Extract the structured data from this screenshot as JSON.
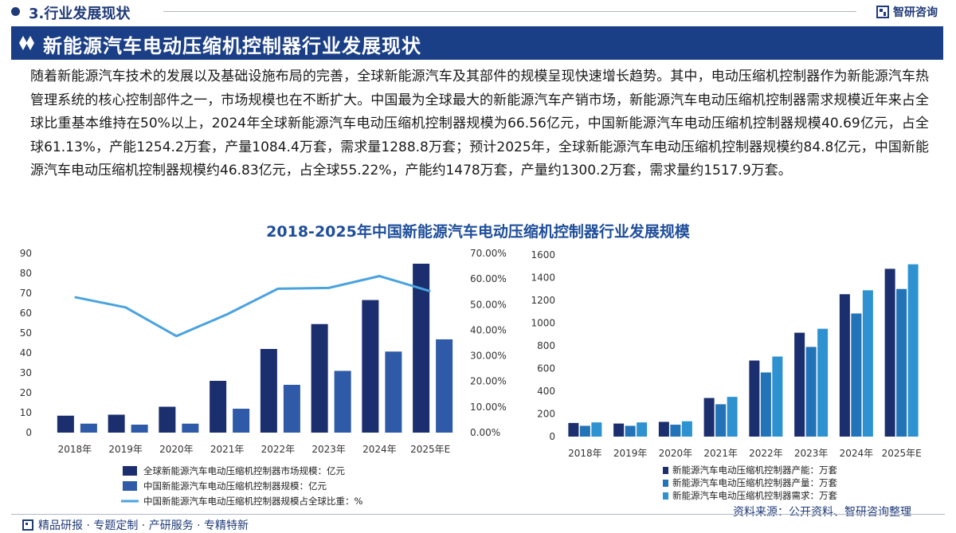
{
  "section": {
    "title": "3.行业发展现状"
  },
  "logo": {
    "name": "智研咨询"
  },
  "banner": {
    "title": "新能源汽车电动压缩机控制器行业发展现状"
  },
  "body": {
    "paragraph": "随着新能源汽车技术的发展以及基础设施布局的完善，全球新能源汽车及其部件的规模呈现快速增长趋势。其中，电动压缩机控制器作为新能源汽车热管理系统的核心控制部件之一，市场规模也在不断扩大。中国最为全球最大的新能源汽车产销市场，新能源汽车电动压缩机控制器需求规模近年来占全球比重基本维持在50%以上，2024年全球新能源汽车电动压缩机控制器规模为66.56亿元，中国新能源汽车电动压缩机控制器规模40.69亿元，占全球61.13%，产能1254.2万套，产量1084.4万套，需求量1288.8万套；预计2025年，全球新能源汽车电动压缩机控制器规模约84.8亿元，中国新能源汽车电动压缩机控制器规模约46.83亿元，占全球55.22%，产能约1478万套，产量约1300.2万套，需求量约1517.9万套。"
  },
  "chart_title": "2018-2025年中国新能源汽车电动压缩机控制器行业发展规模",
  "colors": {
    "navy": "#1b2f6e",
    "blue": "#2f5aa8",
    "line": "#4aa3df",
    "c1": "#1b2f6e",
    "c2": "#2373b8",
    "c3": "#2d92cf"
  },
  "chart_data": [
    {
      "type": "bar",
      "categories": [
        "2018年",
        "2019年",
        "2020年",
        "2021年",
        "2022年",
        "2023年",
        "2024年",
        "2025年E"
      ],
      "series": [
        {
          "name": "全球新能源汽车电动压缩机控制器市场规模：亿元",
          "kind": "bar",
          "axis": "left",
          "values": [
            8.5,
            9,
            13,
            26,
            42,
            54.5,
            66.56,
            84.8
          ]
        },
        {
          "name": "中国新能源汽车电动压缩机控制器规模：亿元",
          "kind": "bar",
          "axis": "left",
          "values": [
            4.5,
            4,
            4.5,
            12,
            24,
            31,
            40.69,
            46.83
          ]
        },
        {
          "name": "中国新能源汽车电动压缩机控制器规模占全球比重：%",
          "kind": "line",
          "axis": "right",
          "values": [
            52.9,
            48.9,
            37.7,
            46.2,
            56.2,
            56.5,
            61.13,
            55.22
          ]
        }
      ],
      "ylim": [
        0,
        90
      ],
      "yticks": [
        "0",
        "10",
        "20",
        "30",
        "40",
        "50",
        "60",
        "70",
        "80",
        "90"
      ],
      "y2lim": [
        0,
        70
      ],
      "y2ticks": [
        "0.00%",
        "10.00%",
        "20.00%",
        "30.00%",
        "40.00%",
        "50.00%",
        "60.00%",
        "70.00%"
      ],
      "legend": "bottom"
    },
    {
      "type": "bar",
      "categories": [
        "2018年",
        "2019年",
        "2020年",
        "2021年",
        "2022年",
        "2023年",
        "2024年",
        "2025年E"
      ],
      "series": [
        {
          "name": "新能源汽车电动压缩机控制器产能：万套",
          "values": [
            120,
            115,
            130,
            340,
            670,
            915,
            1254.2,
            1478
          ]
        },
        {
          "name": "新能源汽车电动压缩机控制器产量：万套",
          "values": [
            95,
            95,
            105,
            285,
            565,
            790,
            1084.4,
            1300.2
          ]
        },
        {
          "name": "新能源汽车电动压缩机控制器需求：万套",
          "values": [
            125,
            125,
            135,
            350,
            705,
            950,
            1288.8,
            1517.9
          ]
        }
      ],
      "ylim": [
        0,
        1600
      ],
      "yticks": [
        "0",
        "200",
        "400",
        "600",
        "800",
        "1000",
        "1200",
        "1400",
        "1600"
      ],
      "legend": "bottom"
    }
  ],
  "source": "资料来源：公开资料、智研咨询整理",
  "footer": {
    "tagline": "精品研报 · 专题定制 · 产研服务 · 专精特新"
  }
}
